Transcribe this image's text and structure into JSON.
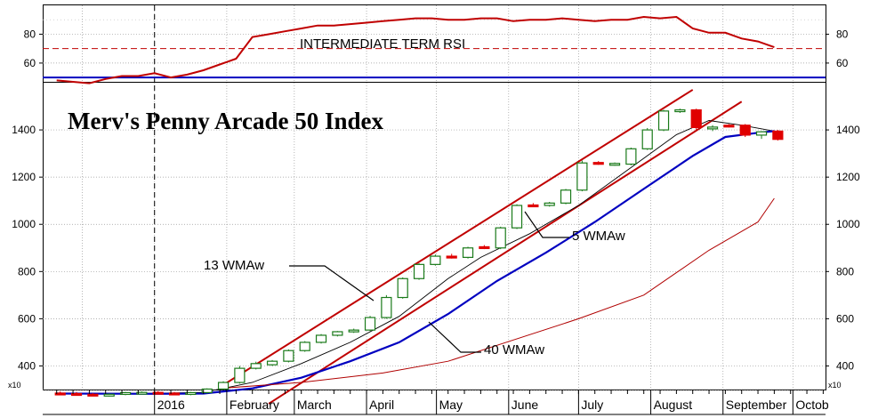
{
  "chart_data": [
    {
      "type": "line",
      "panel": "rsi",
      "label": "INTERMEDIATE TERM RSI",
      "yticks": [
        60,
        80
      ],
      "ylim": [
        47,
        100
      ],
      "reference_line": 70,
      "baseline": 50,
      "x": [
        "2015-11-20",
        "2015-11-27",
        "2015-12-04",
        "2015-12-11",
        "2015-12-18",
        "2015-12-25",
        "2016-01-01",
        "2016-01-08",
        "2016-01-15",
        "2016-01-22",
        "2016-01-29",
        "2016-02-05",
        "2016-02-12",
        "2016-02-19",
        "2016-02-26",
        "2016-03-04",
        "2016-03-11",
        "2016-03-18",
        "2016-03-25",
        "2016-04-01",
        "2016-04-08",
        "2016-04-15",
        "2016-04-22",
        "2016-04-29",
        "2016-05-06",
        "2016-05-13",
        "2016-05-20",
        "2016-05-27",
        "2016-06-03",
        "2016-06-10",
        "2016-06-17",
        "2016-06-24",
        "2016-07-01",
        "2016-07-08",
        "2016-07-15",
        "2016-07-22",
        "2016-07-29",
        "2016-08-05",
        "2016-08-12",
        "2016-08-19",
        "2016-08-26",
        "2016-09-02",
        "2016-09-09",
        "2016-09-16",
        "2016-09-23"
      ],
      "values": [
        48,
        47,
        46,
        49,
        51,
        51,
        53,
        50,
        52,
        55,
        59,
        63,
        78,
        80,
        82,
        84,
        86,
        86,
        87,
        88,
        89,
        90,
        91,
        91,
        90,
        90,
        91,
        91,
        89,
        90,
        90,
        91,
        90,
        89,
        90,
        90,
        92,
        91,
        92,
        84,
        81,
        81,
        77,
        75,
        71
      ]
    },
    {
      "type": "candlestick",
      "panel": "price",
      "title": "Merv's Penny Arcade 50 Index",
      "y_multiplier_label": "x10",
      "yticks": [
        400,
        600,
        800,
        1000,
        1200,
        1400
      ],
      "ylim": [
        300,
        1600
      ],
      "x_month_labels": [
        "2016",
        "February",
        "March",
        "April",
        "May",
        "June",
        "July",
        "August",
        "September",
        "Octob"
      ],
      "weekly_ohlc": [
        {
          "date": "2015-11-20",
          "open": 285,
          "high": 292,
          "low": 280,
          "close": 285,
          "dir": "down"
        },
        {
          "date": "2015-11-27",
          "open": 283,
          "high": 290,
          "low": 276,
          "close": 278,
          "dir": "down"
        },
        {
          "date": "2015-12-04",
          "open": 280,
          "high": 285,
          "low": 272,
          "close": 276,
          "dir": "down"
        },
        {
          "date": "2015-12-11",
          "open": 276,
          "high": 284,
          "low": 270,
          "close": 280,
          "dir": "up"
        },
        {
          "date": "2015-12-18",
          "open": 280,
          "high": 290,
          "low": 276,
          "close": 287,
          "dir": "up"
        },
        {
          "date": "2015-12-25",
          "open": 286,
          "high": 292,
          "low": 282,
          "close": 288,
          "dir": "up"
        },
        {
          "date": "2016-01-01",
          "open": 288,
          "high": 294,
          "low": 282,
          "close": 285,
          "dir": "down"
        },
        {
          "date": "2016-01-08",
          "open": 285,
          "high": 290,
          "low": 278,
          "close": 282,
          "dir": "down"
        },
        {
          "date": "2016-01-15",
          "open": 282,
          "high": 290,
          "low": 276,
          "close": 287,
          "dir": "up"
        },
        {
          "date": "2016-01-22",
          "open": 287,
          "high": 305,
          "low": 283,
          "close": 302,
          "dir": "up"
        },
        {
          "date": "2016-01-29",
          "open": 302,
          "high": 335,
          "low": 298,
          "close": 330,
          "dir": "up"
        },
        {
          "date": "2016-02-05",
          "open": 330,
          "high": 400,
          "low": 325,
          "close": 390,
          "dir": "up"
        },
        {
          "date": "2016-02-12",
          "open": 390,
          "high": 418,
          "low": 385,
          "close": 410,
          "dir": "up"
        },
        {
          "date": "2016-02-19",
          "open": 405,
          "high": 425,
          "low": 400,
          "close": 420,
          "dir": "up"
        },
        {
          "date": "2016-02-26",
          "open": 420,
          "high": 470,
          "low": 415,
          "close": 465,
          "dir": "up"
        },
        {
          "date": "2016-03-04",
          "open": 465,
          "high": 505,
          "low": 460,
          "close": 500,
          "dir": "up"
        },
        {
          "date": "2016-03-11",
          "open": 500,
          "high": 535,
          "low": 495,
          "close": 530,
          "dir": "up"
        },
        {
          "date": "2016-03-18",
          "open": 530,
          "high": 548,
          "low": 525,
          "close": 545,
          "dir": "up"
        },
        {
          "date": "2016-03-25",
          "open": 545,
          "high": 558,
          "low": 540,
          "close": 552,
          "dir": "up"
        },
        {
          "date": "2016-04-01",
          "open": 552,
          "high": 612,
          "low": 548,
          "close": 605,
          "dir": "up"
        },
        {
          "date": "2016-04-08",
          "open": 605,
          "high": 700,
          "low": 600,
          "close": 690,
          "dir": "up"
        },
        {
          "date": "2016-04-15",
          "open": 690,
          "high": 775,
          "low": 685,
          "close": 770,
          "dir": "up"
        },
        {
          "date": "2016-04-22",
          "open": 770,
          "high": 835,
          "low": 765,
          "close": 830,
          "dir": "up"
        },
        {
          "date": "2016-04-29",
          "open": 830,
          "high": 872,
          "low": 825,
          "close": 865,
          "dir": "up"
        },
        {
          "date": "2016-05-06",
          "open": 865,
          "high": 875,
          "low": 855,
          "close": 862,
          "dir": "down"
        },
        {
          "date": "2016-05-13",
          "open": 860,
          "high": 905,
          "low": 855,
          "close": 900,
          "dir": "up"
        },
        {
          "date": "2016-05-20",
          "open": 905,
          "high": 912,
          "low": 895,
          "close": 900,
          "dir": "down"
        },
        {
          "date": "2016-05-27",
          "open": 900,
          "high": 990,
          "low": 895,
          "close": 985,
          "dir": "up"
        },
        {
          "date": "2016-06-03",
          "open": 985,
          "high": 1085,
          "low": 980,
          "close": 1080,
          "dir": "up"
        },
        {
          "date": "2016-06-10",
          "open": 1082,
          "high": 1090,
          "low": 1075,
          "close": 1080,
          "dir": "down"
        },
        {
          "date": "2016-06-17",
          "open": 1080,
          "high": 1095,
          "low": 1075,
          "close": 1090,
          "dir": "up"
        },
        {
          "date": "2016-06-24",
          "open": 1090,
          "high": 1150,
          "low": 1085,
          "close": 1145,
          "dir": "up"
        },
        {
          "date": "2016-07-01",
          "open": 1145,
          "high": 1270,
          "low": 1140,
          "close": 1260,
          "dir": "up"
        },
        {
          "date": "2016-07-08",
          "open": 1262,
          "high": 1268,
          "low": 1252,
          "close": 1258,
          "dir": "down"
        },
        {
          "date": "2016-07-15",
          "open": 1258,
          "high": 1262,
          "low": 1248,
          "close": 1255,
          "dir": "up"
        },
        {
          "date": "2016-07-22",
          "open": 1255,
          "high": 1325,
          "low": 1250,
          "close": 1320,
          "dir": "up"
        },
        {
          "date": "2016-07-29",
          "open": 1320,
          "high": 1408,
          "low": 1315,
          "close": 1400,
          "dir": "up"
        },
        {
          "date": "2016-08-05",
          "open": 1400,
          "high": 1485,
          "low": 1395,
          "close": 1480,
          "dir": "up"
        },
        {
          "date": "2016-08-12",
          "open": 1480,
          "high": 1490,
          "low": 1472,
          "close": 1485,
          "dir": "up"
        },
        {
          "date": "2016-08-19",
          "open": 1485,
          "high": 1490,
          "low": 1400,
          "close": 1410,
          "dir": "down"
        },
        {
          "date": "2016-08-26",
          "open": 1410,
          "high": 1420,
          "low": 1395,
          "close": 1412,
          "dir": "up"
        },
        {
          "date": "2016-09-02",
          "open": 1418,
          "high": 1425,
          "low": 1410,
          "close": 1420,
          "dir": "down"
        },
        {
          "date": "2016-09-09",
          "open": 1420,
          "high": 1425,
          "low": 1370,
          "close": 1378,
          "dir": "down"
        },
        {
          "date": "2016-09-16",
          "open": 1378,
          "high": 1395,
          "low": 1362,
          "close": 1392,
          "dir": "up"
        },
        {
          "date": "2016-09-23",
          "open": 1395,
          "high": 1400,
          "low": 1355,
          "close": 1360,
          "dir": "down"
        }
      ],
      "moving_averages": [
        {
          "name": "5 WMAw",
          "color": "#000000",
          "points": [
            [
              "2015-11-20",
              283
            ],
            [
              "2016-01-01",
              284
            ],
            [
              "2016-01-22",
              288
            ],
            [
              "2016-02-12",
              330
            ],
            [
              "2016-03-04",
              410
            ],
            [
              "2016-03-25",
              500
            ],
            [
              "2016-04-15",
              610
            ],
            [
              "2016-05-06",
              770
            ],
            [
              "2016-05-20",
              860
            ],
            [
              "2016-06-10",
              960
            ],
            [
              "2016-07-01",
              1080
            ],
            [
              "2016-07-22",
              1230
            ],
            [
              "2016-08-12",
              1380
            ],
            [
              "2016-08-26",
              1440
            ],
            [
              "2016-09-09",
              1420
            ],
            [
              "2016-09-23",
              1395
            ]
          ]
        },
        {
          "name": "13 WMAw",
          "color": "#0000c0",
          "points": [
            [
              "2015-11-20",
              283
            ],
            [
              "2016-01-01",
              282
            ],
            [
              "2016-01-22",
              283
            ],
            [
              "2016-02-12",
              305
            ],
            [
              "2016-03-04",
              350
            ],
            [
              "2016-03-25",
              420
            ],
            [
              "2016-04-15",
              500
            ],
            [
              "2016-05-06",
              620
            ],
            [
              "2016-05-27",
              760
            ],
            [
              "2016-06-17",
              880
            ],
            [
              "2016-07-08",
              1010
            ],
            [
              "2016-07-29",
              1150
            ],
            [
              "2016-08-19",
              1290
            ],
            [
              "2016-09-02",
              1370
            ],
            [
              "2016-09-16",
              1388
            ],
            [
              "2016-09-23",
              1395
            ]
          ]
        },
        {
          "name": "40 WMAw",
          "color": "#b00000",
          "points": [
            [
              "2016-01-29",
              305
            ],
            [
              "2016-03-04",
              330
            ],
            [
              "2016-04-08",
              370
            ],
            [
              "2016-05-06",
              420
            ],
            [
              "2016-06-03",
              510
            ],
            [
              "2016-07-01",
              600
            ],
            [
              "2016-07-29",
              700
            ],
            [
              "2016-08-26",
              890
            ],
            [
              "2016-09-16",
              1010
            ],
            [
              "2016-09-23",
              1110
            ]
          ]
        }
      ],
      "trendlines": [
        {
          "name": "upper channel",
          "from": [
            "2016-01-29",
            310
          ],
          "to": [
            "2016-08-19",
            1570
          ]
        },
        {
          "name": "lower channel",
          "from": [
            "2016-02-19",
            240
          ],
          "to": [
            "2016-09-09",
            1520
          ]
        }
      ]
    }
  ]
}
